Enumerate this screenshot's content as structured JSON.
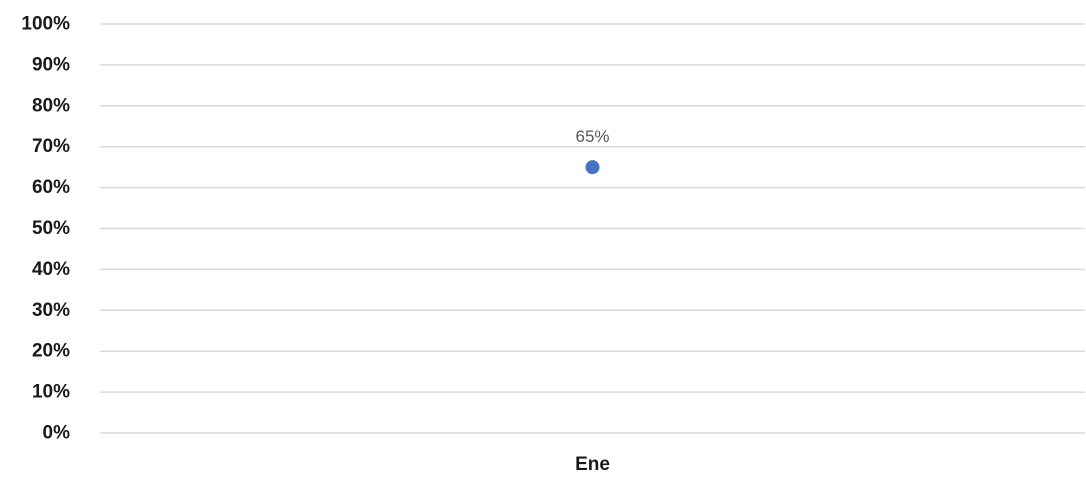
{
  "chart_data": {
    "type": "scatter",
    "categories": [
      "Ene"
    ],
    "series": [
      {
        "values": [
          0.65
        ],
        "color": "#4472c4",
        "data_labels": [
          "65%"
        ]
      }
    ],
    "y_ticks": [
      "0%",
      "10%",
      "20%",
      "30%",
      "40%",
      "50%",
      "60%",
      "70%",
      "80%",
      "90%",
      "100%"
    ],
    "ylim": [
      0,
      1
    ],
    "grid": true,
    "legend": "none",
    "title": "",
    "xlabel": "",
    "ylabel": ""
  }
}
